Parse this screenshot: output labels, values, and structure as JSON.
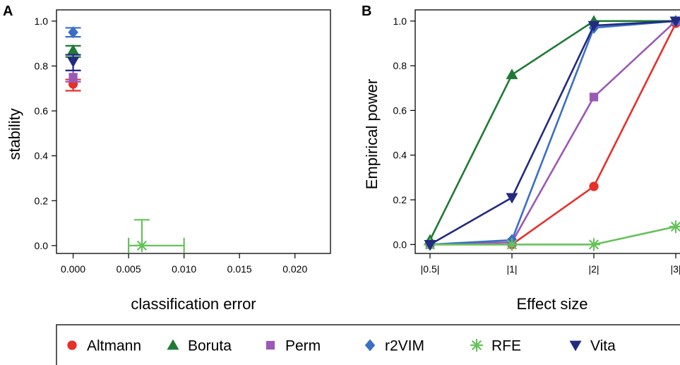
{
  "chart_data": [
    {
      "panel": "A",
      "type": "scatter",
      "xlabel": "classification error",
      "ylabel": "stability",
      "xlim": [
        -0.0015,
        0.0232
      ],
      "ylim": [
        -0.035,
        1.05
      ],
      "xticks": [
        "0.000",
        "0.005",
        "0.010",
        "0.015",
        "0.020"
      ],
      "yticks": [
        "0.0",
        "0.2",
        "0.4",
        "0.6",
        "0.8",
        "1.0"
      ],
      "points": [
        {
          "method": "Altmann",
          "x": 0.0,
          "y": 0.72,
          "x_err": [
            0.0,
            0.0
          ],
          "y_err": [
            0.69,
            0.74
          ]
        },
        {
          "method": "Boruta",
          "x": 0.0,
          "y": 0.87,
          "x_err": [
            0.0,
            0.0
          ],
          "y_err": [
            0.84,
            0.89
          ]
        },
        {
          "method": "Perm",
          "x": 0.0,
          "y": 0.75,
          "x_err": [
            0.0,
            0.0
          ],
          "y_err": [
            0.73,
            0.78
          ]
        },
        {
          "method": "r2VIM",
          "x": 0.0,
          "y": 0.95,
          "x_err": [
            0.0,
            0.0
          ],
          "y_err": [
            0.93,
            0.97
          ]
        },
        {
          "method": "RFE",
          "x": 0.0062,
          "y": 0.0,
          "x_err": [
            0.005,
            0.01
          ],
          "y_err": [
            0.0,
            0.115
          ]
        },
        {
          "method": "Vita",
          "x": 0.0,
          "y": 0.82,
          "x_err": [
            0.0,
            0.0
          ],
          "y_err": [
            0.78,
            0.85
          ]
        }
      ]
    },
    {
      "panel": "B",
      "type": "line",
      "xlabel": "Effect size",
      "ylabel": "Empirical power",
      "categories": [
        "|0.5|",
        "|1|",
        "|2|",
        "|3|"
      ],
      "ylim": [
        -0.04,
        1.05
      ],
      "yticks": [
        "0.0",
        "0.2",
        "0.4",
        "0.6",
        "0.8",
        "1.0"
      ],
      "series": [
        {
          "name": "Altmann",
          "values": [
            0.0,
            0.0,
            0.26,
            0.99
          ]
        },
        {
          "name": "Boruta",
          "values": [
            0.02,
            0.76,
            1.0,
            1.0
          ]
        },
        {
          "name": "Perm",
          "values": [
            0.0,
            0.01,
            0.66,
            1.0
          ]
        },
        {
          "name": "r2VIM",
          "values": [
            0.0,
            0.02,
            0.97,
            1.0
          ]
        },
        {
          "name": "RFE",
          "values": [
            0.0,
            0.0,
            0.0,
            0.08
          ]
        },
        {
          "name": "Vita",
          "values": [
            0.0,
            0.21,
            0.98,
            1.0
          ]
        }
      ]
    }
  ],
  "legend": {
    "placement": "bottom",
    "items": [
      {
        "name": "Altmann",
        "marker": "circle",
        "color": "#e8302a"
      },
      {
        "name": "Boruta",
        "marker": "triangle-up",
        "color": "#1f7a35"
      },
      {
        "name": "Perm",
        "marker": "square",
        "color": "#9b59b6"
      },
      {
        "name": "r2VIM",
        "marker": "diamond",
        "color": "#3a6fc4"
      },
      {
        "name": "RFE",
        "marker": "asterisk",
        "color": "#66c25a"
      },
      {
        "name": "Vita",
        "marker": "triangle-down",
        "color": "#232a80"
      }
    ]
  }
}
